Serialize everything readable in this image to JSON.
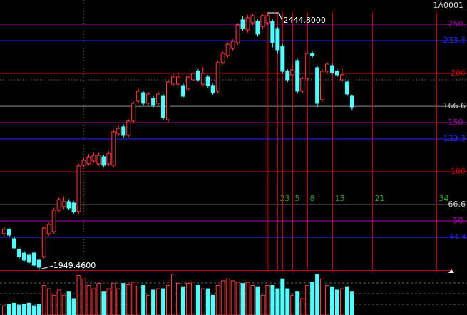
{
  "chart_data": {
    "type": "candlestick",
    "title": "1A0001",
    "open": [
      2018.3,
      2026.6,
      2008.6,
      1988.0,
      1981.1,
      1977.0,
      1981.1,
      1967.4,
      1974.2,
      2018.3,
      2022.4,
      2063.7,
      2070.6,
      2080.2,
      2077.4,
      2060.9,
      2150.4,
      2153.1,
      2158.6,
      2153.1,
      2166.9,
      2153.1,
      2150.4,
      2210.9,
      2224.7,
      2208.2,
      2235.7,
      2274.2,
      2290.7,
      2270.1,
      2279.7,
      2270.1,
      2283.8,
      2238.4,
      2307.2,
      2307.2,
      2304.5,
      2297.6,
      2315.5,
      2332.0,
      2307.2,
      2321.0,
      2304.5,
      2293.5,
      2348.5,
      2362.3,
      2376.0,
      2387.0,
      2431.1,
      2411.8,
      2425.6,
      2428.3,
      2418.7,
      2425.6,
      2428.3,
      2414.6,
      2380.2,
      2332.0,
      2325.1,
      2352.6,
      2293.5,
      2318.2,
      2366.4,
      2338.9,
      2277.0,
      2332.0,
      2343.0,
      2332.0,
      2315.5,
      2311.4,
      2283.8
    ],
    "high": [
      2032.0,
      2030.0,
      2013.0,
      1992.0,
      1985.0,
      1981.0,
      1985.0,
      1971.0,
      2033.0,
      2040.0,
      2068.0,
      2088.0,
      2090.0,
      2085.0,
      2081.0,
      2153.0,
      2165.0,
      2172.0,
      2176.0,
      2175.0,
      2171.0,
      2178.0,
      2219.0,
      2226.0,
      2229.0,
      2240.0,
      2274.0,
      2298.0,
      2295.0,
      2292.0,
      2284.0,
      2292.0,
      2288.0,
      2316.0,
      2326.0,
      2330.0,
      2309.0,
      2325.0,
      2332.0,
      2336.0,
      2340.0,
      2325.0,
      2308.0,
      2352.0,
      2370.0,
      2388.0,
      2394.0,
      2425.0,
      2438.0,
      2441.0,
      2443.0,
      2432.0,
      2442.0,
      2444.8,
      2432.0,
      2418.0,
      2384.0,
      2336.0,
      2345.0,
      2356.0,
      2322.0,
      2370.0,
      2370.0,
      2343.0,
      2336.0,
      2350.0,
      2347.0,
      2336.0,
      2339.0,
      2315.0,
      2287.0
    ],
    "low": [
      2013.0,
      2011.0,
      1988.0,
      1970.0,
      1963.0,
      1960.0,
      1955.0,
      1949.46,
      1970.0,
      2014.0,
      2018.0,
      2060.0,
      2066.0,
      2064.0,
      2057.0,
      2057.0,
      2147.0,
      2150.0,
      2155.0,
      2149.0,
      2146.0,
      2149.0,
      2146.0,
      2207.0,
      2204.0,
      2204.0,
      2232.0,
      2270.0,
      2266.0,
      2266.0,
      2262.0,
      2266.0,
      2238.0,
      2234.0,
      2303.0,
      2303.0,
      2280.0,
      2294.0,
      2312.0,
      2312.0,
      2303.0,
      2300.0,
      2286.0,
      2289.0,
      2345.0,
      2358.0,
      2372.0,
      2383.0,
      2410.0,
      2407.0,
      2421.0,
      2399.0,
      2414.0,
      2421.0,
      2378.0,
      2366.0,
      2328.0,
      2311.0,
      2321.0,
      2289.0,
      2289.0,
      2314.0,
      2358.0,
      2263.0,
      2273.0,
      2328.0,
      2325.0,
      2321.0,
      2311.0,
      2283.0,
      2256.3
    ],
    "close": [
      2026.6,
      2015.5,
      1990.8,
      1974.2,
      1967.4,
      1963.2,
      1957.7,
      1953.6,
      2029.3,
      2036.2,
      2063.7,
      2084.3,
      2080.2,
      2067.8,
      2060.9,
      2149.0,
      2160.0,
      2166.9,
      2169.6,
      2169.6,
      2150.4,
      2173.8,
      2215.0,
      2221.9,
      2208.2,
      2235.7,
      2270.1,
      2293.5,
      2270.1,
      2288.0,
      2266.0,
      2288.0,
      2242.6,
      2311.4,
      2321.0,
      2321.0,
      2283.8,
      2321.0,
      2327.9,
      2315.5,
      2327.9,
      2304.5,
      2290.7,
      2348.5,
      2366.4,
      2384.3,
      2389.8,
      2421.4,
      2414.6,
      2435.2,
      2439.3,
      2403.6,
      2439.3,
      2439.3,
      2387.0,
      2373.3,
      2332.0,
      2315.5,
      2334.8,
      2293.5,
      2318.2,
      2366.4,
      2362.3,
      2270.1,
      2332.0,
      2345.8,
      2329.2,
      2325.1,
      2325.1,
      2288.0,
      2263.2
    ],
    "volume": [
      14,
      16,
      18,
      15,
      16,
      18,
      14,
      16,
      45,
      40,
      30,
      38,
      30,
      35,
      25,
      60,
      55,
      45,
      40,
      48,
      35,
      40,
      48,
      40,
      48,
      46,
      50,
      44,
      45,
      30,
      38,
      40,
      40,
      45,
      62,
      48,
      42,
      48,
      50,
      45,
      40,
      40,
      30,
      45,
      52,
      55,
      52,
      50,
      48,
      50,
      45,
      42,
      30,
      45,
      45,
      40,
      55,
      40,
      30,
      35,
      25,
      45,
      50,
      62,
      55,
      45,
      42,
      38,
      40,
      42,
      35
    ],
    "ylim": [
      1946.7,
      2469.6
    ],
    "volume_lim": [
      0,
      65
    ],
    "y2lim": [
      -0.7,
      274.6
    ],
    "y2ticks": [
      {
        "value": 250,
        "label": "250."
      },
      233.3,
      200,
      166.6,
      {
        "value": 150,
        "label": "150."
      },
      133.3,
      100,
      66.6,
      {
        "value": 50,
        "label": "50."
      },
      33.3
    ],
    "y2tick_colors": [
      "#b000b0",
      "#2828ff",
      "#d00000",
      "#8c8c8c",
      "#b000b0",
      "#2828ff",
      "#d00000",
      "#8c8c8c",
      "#b000b0",
      "#2828ff"
    ],
    "high_label": "2444.8000",
    "low_label": "1949.4600",
    "time_cycles": [
      2,
      3,
      5,
      8,
      13,
      21,
      34
    ],
    "up_color": "#ff3c3c",
    "down_color": "#54ffff",
    "cycle_color": "#c00000",
    "cycle_label_color": "#2ca02c"
  }
}
